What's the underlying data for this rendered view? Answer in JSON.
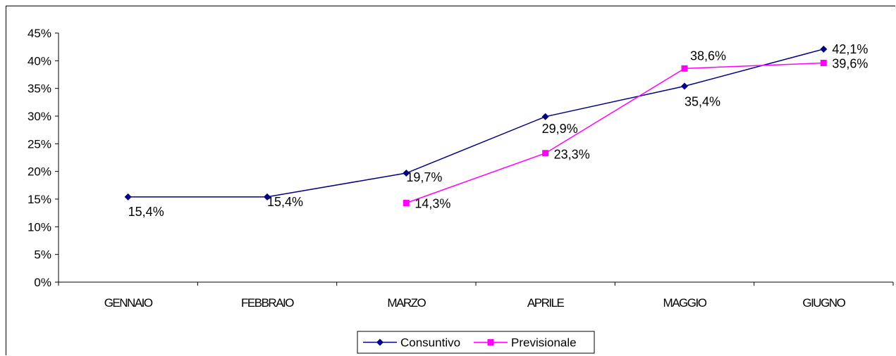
{
  "chart_data": {
    "type": "line",
    "title": "",
    "xlabel": "",
    "ylabel": "",
    "categories": [
      "GENNAIO",
      "FEBBRAIO",
      "MARZO",
      "APRILE",
      "MAGGIO",
      "GIUGNO"
    ],
    "ylim": [
      0,
      45
    ],
    "yticks": [
      "0%",
      "5%",
      "10%",
      "15%",
      "20%",
      "25%",
      "30%",
      "35%",
      "40%",
      "45%"
    ],
    "grid": false,
    "legend_position": "bottom",
    "series": [
      {
        "name": "Consuntivo",
        "color": "#000080",
        "marker": "diamond",
        "values": [
          15.4,
          15.4,
          19.7,
          29.9,
          35.4,
          42.1
        ],
        "labels": [
          "15,4%",
          "15,4%",
          "19,7%",
          "29,9%",
          "35,4%",
          "42,1%"
        ]
      },
      {
        "name": "Previsionale",
        "color": "#FF00FF",
        "marker": "square",
        "values": [
          null,
          null,
          14.3,
          23.3,
          38.6,
          39.6
        ],
        "labels": [
          null,
          null,
          "14,3%",
          "23,3%",
          "38,6%",
          "39,6%"
        ]
      }
    ]
  }
}
